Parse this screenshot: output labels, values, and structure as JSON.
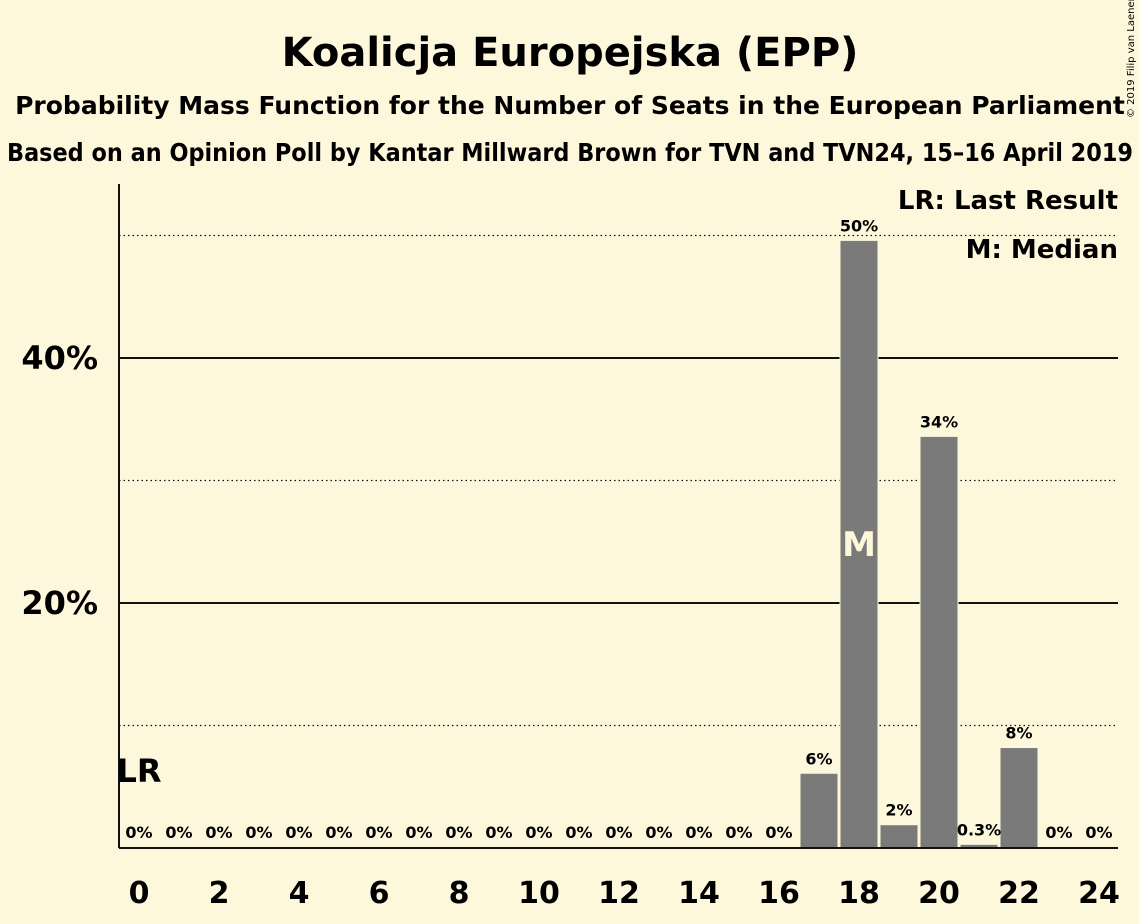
{
  "chart_data": {
    "type": "bar",
    "title": "Koalicja Europejska (EPP)",
    "subtitle": "Probability Mass Function for the Number of Seats in the European Parliament",
    "subtitle2": "Based on an Opinion Poll by Kantar Millward Brown for TVN and TVN24, 15–16 April 2019",
    "copyright": "© 2019 Filip van Laenen",
    "x": [
      0,
      1,
      2,
      3,
      4,
      5,
      6,
      7,
      8,
      9,
      10,
      11,
      12,
      13,
      14,
      15,
      16,
      17,
      18,
      19,
      20,
      21,
      22,
      23,
      24
    ],
    "values": [
      0,
      0,
      0,
      0,
      0,
      0,
      0,
      0,
      0,
      0,
      0,
      0,
      0,
      0,
      0,
      0,
      0,
      6.1,
      49.6,
      1.9,
      33.6,
      0.3,
      8.2,
      0,
      0
    ],
    "value_labels": [
      "0%",
      "0%",
      "0%",
      "0%",
      "0%",
      "0%",
      "0%",
      "0%",
      "0%",
      "0%",
      "0%",
      "0%",
      "0%",
      "0%",
      "0%",
      "0%",
      "0%",
      "6%",
      "50%",
      "2%",
      "34%",
      "0.3%",
      "8%",
      "0%",
      "0%"
    ],
    "x_tick_labels": [
      "0",
      "2",
      "4",
      "6",
      "8",
      "10",
      "12",
      "14",
      "16",
      "18",
      "20",
      "22",
      "24"
    ],
    "x_tick_values": [
      0,
      2,
      4,
      6,
      8,
      10,
      12,
      14,
      16,
      18,
      20,
      22,
      24
    ],
    "y_tick_labels": [
      "20%",
      "40%"
    ],
    "y_tick_values": [
      20,
      40
    ],
    "y_dotted_gridlines": [
      10,
      30,
      50
    ],
    "ylim": [
      0,
      54
    ],
    "last_result_seat": 0,
    "last_result_label": "LR",
    "median_seat": 18,
    "median_label": "M",
    "legend": [
      "LR: Last Result",
      "M: Median"
    ],
    "legend_position": "top-right",
    "colors": {
      "bar": "#7a7a7a",
      "background": "#fdf8dc",
      "text": "#111111"
    }
  }
}
